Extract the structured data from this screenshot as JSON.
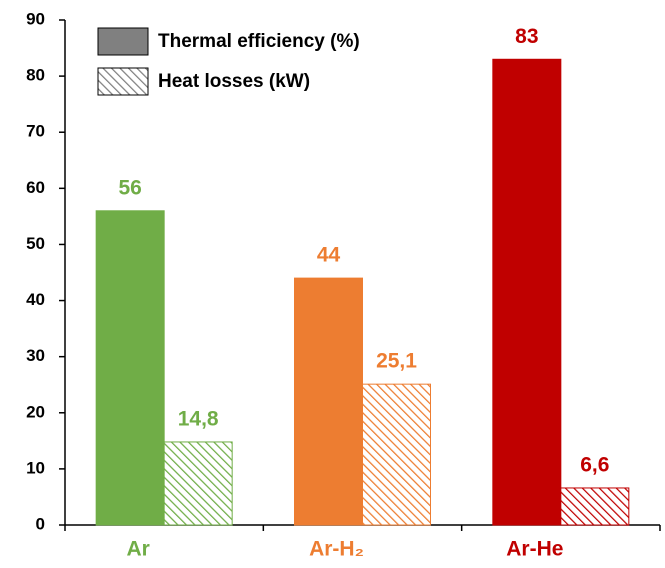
{
  "chart_data": {
    "type": "bar",
    "categories": [
      "Ar",
      "Ar-H₂",
      "Ar-He"
    ],
    "colors": [
      "#70ad47",
      "#ed7d31",
      "#c00000"
    ],
    "series": [
      {
        "name": "Thermal efficiency (%)",
        "color": "#808080",
        "values": [
          56,
          44,
          83
        ]
      },
      {
        "name": "Heat losses (kW)",
        "color": "#808080",
        "hatch": true,
        "values": [
          14.8,
          25.1,
          6.6
        ],
        "value_labels": [
          "14,8",
          "25,1",
          "6,6"
        ]
      }
    ],
    "ylim": [
      0,
      90
    ],
    "yticks": [
      0,
      10,
      20,
      30,
      40,
      50,
      60,
      70,
      80,
      90
    ]
  }
}
